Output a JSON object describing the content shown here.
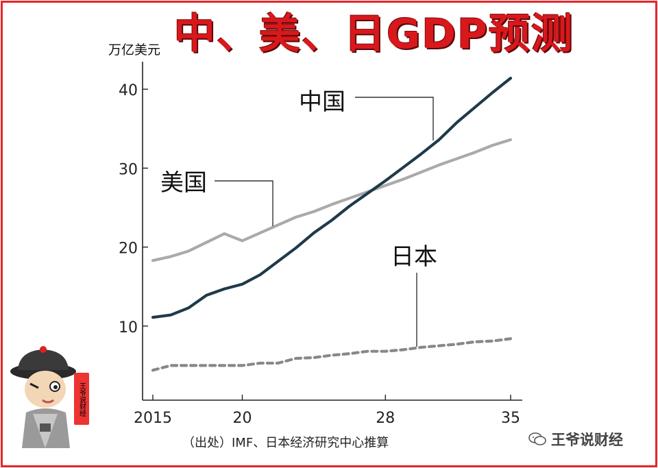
{
  "title": "中、美、日GDP预测",
  "unit": "万亿美元",
  "source": "（出处）IMF、日本经济研究中心推算",
  "watermark": "王爷说财经",
  "mascot_seal": "王爷说财经",
  "colors": {
    "title": "#d9181c",
    "frame": "#e8262b",
    "china": "#1f3a4a",
    "usa": "#aaaaaa",
    "japan": "#888888"
  },
  "chart_data": {
    "type": "line",
    "x": [
      2015,
      2016,
      2017,
      2018,
      2019,
      2020,
      2021,
      2022,
      2023,
      2024,
      2025,
      2026,
      2027,
      2028,
      2029,
      2030,
      2031,
      2032,
      2033,
      2034,
      2035
    ],
    "series": [
      {
        "name": "中国",
        "style": "solid-dark",
        "values": [
          11.1,
          11.4,
          12.3,
          13.9,
          14.7,
          15.3,
          16.5,
          18.2,
          19.9,
          21.8,
          23.4,
          25.2,
          26.8,
          28.4,
          30.1,
          31.8,
          33.6,
          35.8,
          37.7,
          39.6,
          41.4
        ]
      },
      {
        "name": "美国",
        "style": "solid-light",
        "values": [
          18.3,
          18.8,
          19.5,
          20.6,
          21.7,
          20.8,
          21.8,
          22.8,
          23.8,
          24.5,
          25.4,
          26.2,
          27.0,
          27.8,
          28.6,
          29.5,
          30.4,
          31.2,
          32.0,
          32.9,
          33.6
        ]
      },
      {
        "name": "日本",
        "style": "dashed",
        "values": [
          4.4,
          5.0,
          5.0,
          5.0,
          5.0,
          5.0,
          5.3,
          5.3,
          5.9,
          6.0,
          6.3,
          6.5,
          6.8,
          6.8,
          7.0,
          7.3,
          7.5,
          7.7,
          8.0,
          8.1,
          8.4
        ]
      }
    ],
    "y_ticks": [
      "10",
      "20",
      "30",
      "40"
    ],
    "x_ticks": [
      "2015",
      "20",
      "28",
      "35"
    ],
    "ylim": [
      0,
      45
    ],
    "xlim": [
      2015,
      2035
    ],
    "grid": false,
    "legend": "inline labels with leader lines"
  }
}
